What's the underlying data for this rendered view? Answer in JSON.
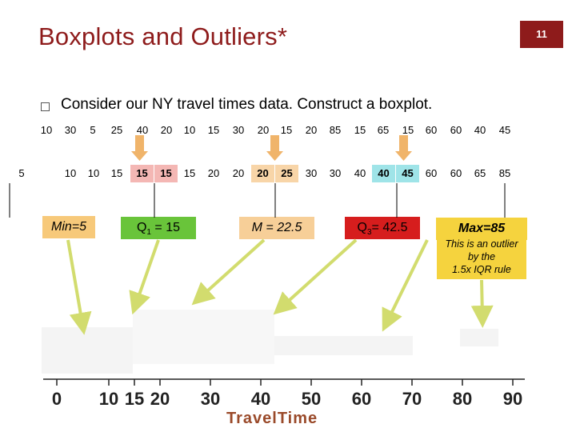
{
  "slide": {
    "title": "Boxplots and Outliers*",
    "page_number": "11",
    "bullet": "Consider our NY travel times data. Construct a boxplot."
  },
  "data_rows": {
    "raw": [
      "10",
      "30",
      "5",
      "25",
      "40",
      "20",
      "10",
      "15",
      "30",
      "20",
      "15",
      "20",
      "85",
      "15",
      "65",
      "15",
      "60",
      "60",
      "40",
      "45"
    ],
    "sorted": [
      "5",
      "10",
      "10",
      "15",
      "15",
      "15",
      "15",
      "20",
      "20",
      "20",
      "25",
      "30",
      "30",
      "40",
      "40",
      "45",
      "60",
      "60",
      "65",
      "85"
    ]
  },
  "stats": {
    "min": "Min=5",
    "q1_label": "Q",
    "q1_sub": "1",
    "q1_value": " = 15",
    "median": "M = 22.5",
    "q3_label": "Q",
    "q3_sub": "3",
    "q3_value": "= 42.5",
    "max": "Max=85",
    "outlier_note": [
      "This is an outlier",
      "by the",
      "1.5x IQR rule"
    ]
  },
  "axis": {
    "ticks": [
      "0",
      "10",
      "15",
      "20",
      "30",
      "40",
      "50",
      "60",
      "70",
      "80",
      "90"
    ],
    "title": "TravelTime"
  },
  "colors": {
    "title": "#8e1b1b",
    "arrow": "#d2dc6e",
    "down_arrow": "#f0b46a",
    "min_box": "#f7c97a",
    "q1_box": "#69c43a",
    "median_box": "#f7cf98",
    "q3_box": "#d61d1d",
    "max_box": "#f5d33e"
  }
}
